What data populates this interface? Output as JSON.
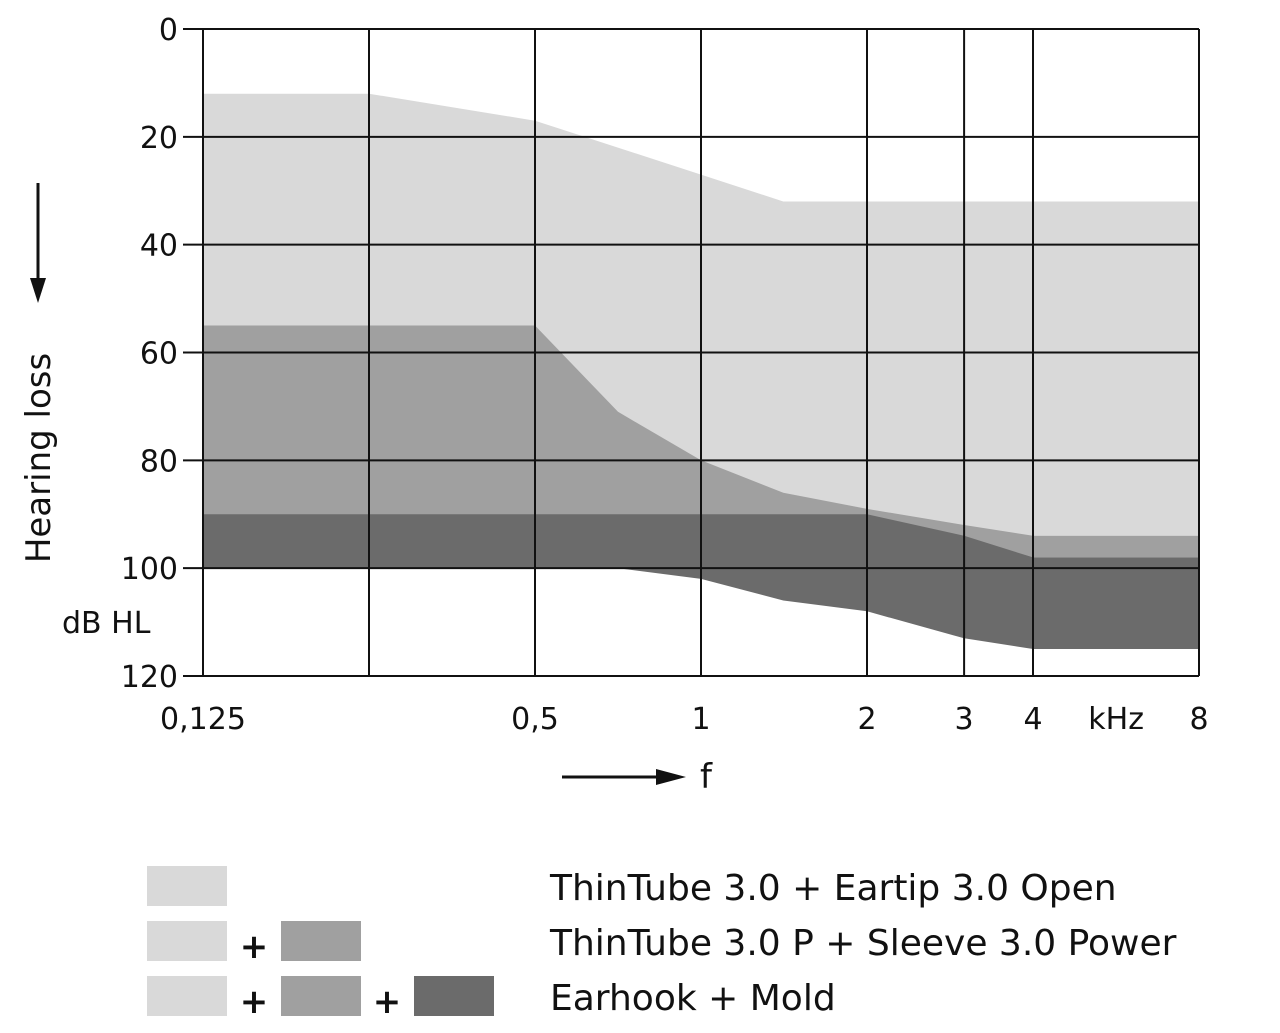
{
  "chart_data": {
    "type": "area",
    "x_axis": {
      "scale": "log2",
      "range": [
        0.125,
        8
      ],
      "gridlines": [
        0.125,
        0.25,
        0.5,
        1,
        2,
        3,
        4,
        8
      ],
      "tick_labels": [
        {
          "value": 0.125,
          "text": "0,125"
        },
        {
          "value": 0.5,
          "text": "0,5"
        },
        {
          "value": 1,
          "text": "1"
        },
        {
          "value": 2,
          "text": "2"
        },
        {
          "value": 3,
          "text": "3"
        },
        {
          "value": 4,
          "text": "4"
        },
        {
          "value": 8,
          "text": "8"
        }
      ],
      "unit_label": "kHz",
      "unit_value": 5.66,
      "label": "f"
    },
    "y_axis": {
      "range": [
        0,
        120
      ],
      "inverted": true,
      "ticks": [
        0,
        20,
        40,
        60,
        80,
        100,
        120
      ],
      "label": "Hearing loss",
      "unit_label": "dB HL"
    },
    "grid": true,
    "legend_position": "bottom",
    "series": [
      {
        "name": "ThinTube 3.0 + Eartip 3.0 Open",
        "color": "#d9d9d9",
        "upper": [
          [
            0.125,
            12
          ],
          [
            0.25,
            12
          ],
          [
            0.5,
            17
          ],
          [
            1,
            27
          ],
          [
            1.41,
            32
          ],
          [
            2,
            32
          ],
          [
            3,
            32
          ],
          [
            4,
            32
          ],
          [
            8,
            32
          ]
        ],
        "lower": [
          [
            0.125,
            100
          ],
          [
            0.5,
            100
          ],
          [
            1,
            100
          ],
          [
            2,
            100
          ],
          [
            3,
            100
          ],
          [
            4,
            94
          ],
          [
            8,
            94
          ]
        ]
      },
      {
        "name": "ThinTube 3.0 P + Sleeve 3.0 Power",
        "color": "#a0a0a0",
        "upper": [
          [
            0.125,
            55
          ],
          [
            0.5,
            55
          ],
          [
            0.707,
            71
          ],
          [
            1,
            80
          ],
          [
            1.41,
            86
          ],
          [
            2,
            89
          ],
          [
            3,
            92
          ],
          [
            4,
            94
          ],
          [
            8,
            94
          ]
        ],
        "lower": [
          [
            0.125,
            100
          ],
          [
            0.5,
            100
          ],
          [
            1,
            100
          ],
          [
            2,
            100
          ],
          [
            3,
            100
          ],
          [
            4,
            98
          ],
          [
            8,
            98
          ]
        ]
      },
      {
        "name": "Earhook + Mold",
        "color": "#6b6b6b",
        "upper": [
          [
            0.125,
            90
          ],
          [
            0.5,
            90
          ],
          [
            1,
            90
          ],
          [
            2,
            90
          ],
          [
            3,
            94
          ],
          [
            4,
            98
          ],
          [
            8,
            98
          ]
        ],
        "lower": [
          [
            0.125,
            100
          ],
          [
            0.5,
            100
          ],
          [
            0.707,
            100
          ],
          [
            1,
            102
          ],
          [
            1.41,
            106
          ],
          [
            2,
            108
          ],
          [
            3,
            113
          ],
          [
            4,
            115
          ],
          [
            8,
            115
          ]
        ]
      }
    ]
  },
  "legend": {
    "items": [
      {
        "label": "ThinTube 3.0 + Eartip 3.0 Open",
        "swatches": [
          "#d9d9d9"
        ]
      },
      {
        "label": "ThinTube 3.0 P + Sleeve 3.0 Power",
        "swatches": [
          "#d9d9d9",
          "#a0a0a0"
        ]
      },
      {
        "label": "Earhook + Mold",
        "swatches": [
          "#d9d9d9",
          "#a0a0a0",
          "#6b6b6b"
        ]
      }
    ],
    "plus": "+"
  }
}
